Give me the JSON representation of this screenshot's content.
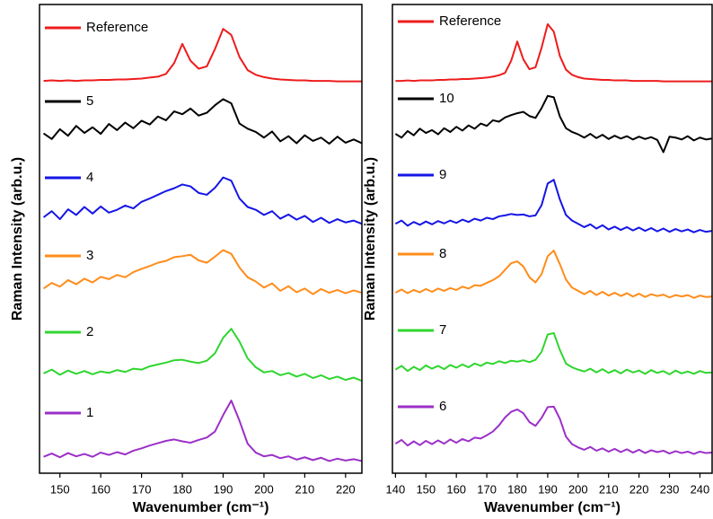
{
  "chart_data": [
    {
      "type": "line",
      "xlabel": "Wavenumber (cm⁻¹)",
      "ylabel": "Raman Intensity (arb.u.)",
      "xlim": [
        145,
        224
      ],
      "xticks": [
        150,
        160,
        170,
        180,
        190,
        200,
        210,
        220
      ],
      "ylim": [
        0,
        100
      ],
      "x": [
        146,
        148,
        150,
        152,
        154,
        156,
        158,
        160,
        162,
        164,
        166,
        168,
        170,
        172,
        174,
        176,
        178,
        180,
        182,
        184,
        186,
        188,
        190,
        192,
        194,
        196,
        198,
        200,
        202,
        204,
        206,
        208,
        210,
        212,
        214,
        216,
        218,
        220,
        222,
        224
      ],
      "series": [
        {
          "name": "Reference",
          "color": "#ee1c1c",
          "values": [
            83.7,
            83.8,
            83.7,
            83.8,
            83.7,
            83.8,
            83.8,
            83.9,
            83.9,
            84,
            84,
            84.1,
            84.2,
            84.4,
            84.6,
            85.2,
            87.5,
            91.6,
            88,
            86.3,
            86.8,
            90.5,
            94.8,
            93.5,
            88.8,
            86,
            85,
            84.5,
            84.2,
            84,
            83.9,
            83.8,
            83.8,
            83.7,
            83.7,
            83.7,
            83.6,
            83.6,
            83.6,
            83.6
          ]
        },
        {
          "name": "5",
          "color": "#000000",
          "values": [
            72.5,
            71.3,
            73.4,
            72,
            74.1,
            72.6,
            73.8,
            72.4,
            74.5,
            73.2,
            74.8,
            73.6,
            75.2,
            74.4,
            76.1,
            75.3,
            77.2,
            76.6,
            77.8,
            76.3,
            76.9,
            78.5,
            79.8,
            78.9,
            74.6,
            73.5,
            72.8,
            71.6,
            72.9,
            70.8,
            71.9,
            70.4,
            72.1,
            70.9,
            71.6,
            70.3,
            71.8,
            70.5,
            71.2,
            70.4
          ]
        },
        {
          "name": "4",
          "color": "#1515e6",
          "values": [
            54.6,
            55.9,
            54.2,
            56.3,
            55.1,
            56.8,
            55.4,
            56.9,
            55.6,
            56.2,
            57.1,
            56.5,
            57.9,
            58.6,
            59.4,
            60.2,
            60.8,
            61.6,
            61.2,
            59.8,
            59.4,
            60.9,
            63.1,
            62.4,
            58.6,
            56.8,
            56.2,
            55.1,
            55.9,
            54.3,
            55.2,
            54.1,
            54.9,
            53.6,
            54.5,
            53.4,
            54.2,
            53.5,
            53.9,
            53.2
          ]
        },
        {
          "name": "3",
          "color": "#ff8c1a",
          "values": [
            39.4,
            40.6,
            39.8,
            41.2,
            40.3,
            41.5,
            40.7,
            41.9,
            41.4,
            42.3,
            41.8,
            42.9,
            43.6,
            44.2,
            44.9,
            45.3,
            46.1,
            46.3,
            46.6,
            45.4,
            44.9,
            46.2,
            47.6,
            46.8,
            43.9,
            41.8,
            40.9,
            39.6,
            40.5,
            38.9,
            39.9,
            38.6,
            39.4,
            38.2,
            39.3,
            38.5,
            39.1,
            38.4,
            39.0,
            38.5
          ]
        },
        {
          "name": "2",
          "color": "#2fd62f",
          "values": [
            21.3,
            22.1,
            21.0,
            21.9,
            21.2,
            21.8,
            21.1,
            21.7,
            21.4,
            22.0,
            21.6,
            22.3,
            22.1,
            22.8,
            23.2,
            23.6,
            24.1,
            24.2,
            23.8,
            23.5,
            24.0,
            25.6,
            28.9,
            30.8,
            28.1,
            24.5,
            22.6,
            21.5,
            21.8,
            20.9,
            21.4,
            20.6,
            21.2,
            20.3,
            20.9,
            20.1,
            20.6,
            19.9,
            20.4,
            19.7
          ]
        },
        {
          "name": "1",
          "color": "#9b30c8",
          "values": [
            3.5,
            4.2,
            3.4,
            4.3,
            3.6,
            4.1,
            3.5,
            4.4,
            3.9,
            4.5,
            4.0,
            4.8,
            5.3,
            5.9,
            6.4,
            6.9,
            7.2,
            6.8,
            6.5,
            7.1,
            7.6,
            8.9,
            12.4,
            15.5,
            11.2,
            6.3,
            4.4,
            3.6,
            3.9,
            3.2,
            3.6,
            2.9,
            3.4,
            2.8,
            3.3,
            2.6,
            3.1,
            2.7,
            3.0,
            2.6
          ]
        }
      ]
    },
    {
      "type": "line",
      "xlabel": "Wavenumber (cm⁻¹)",
      "ylabel": "Raman Intensity (arb.u.)",
      "xlim": [
        139,
        244
      ],
      "xticks": [
        140,
        150,
        160,
        170,
        180,
        190,
        200,
        210,
        220,
        230,
        240
      ],
      "ylim": [
        0,
        100
      ],
      "x": [
        140,
        142,
        144,
        146,
        148,
        150,
        152,
        154,
        156,
        158,
        160,
        162,
        164,
        166,
        168,
        170,
        172,
        174,
        176,
        178,
        180,
        182,
        184,
        186,
        188,
        190,
        192,
        194,
        196,
        198,
        200,
        202,
        204,
        206,
        208,
        210,
        212,
        214,
        216,
        218,
        220,
        222,
        224,
        226,
        228,
        230,
        232,
        234,
        236,
        238,
        240,
        242,
        244
      ],
      "series": [
        {
          "name": "Reference",
          "color": "#ee1c1c",
          "values": [
            83.7,
            83.7,
            83.8,
            83.7,
            83.8,
            83.8,
            83.8,
            83.9,
            83.9,
            84,
            84,
            84.1,
            84.1,
            84.2,
            84.3,
            84.4,
            84.6,
            84.9,
            85.4,
            88.0,
            92.1,
            88.3,
            86.2,
            86.6,
            90.8,
            95.8,
            94.2,
            89.0,
            86.1,
            85.0,
            84.5,
            84.2,
            84.1,
            84.0,
            83.9,
            83.9,
            83.8,
            83.8,
            83.8,
            83.7,
            83.7,
            83.7,
            83.7,
            83.7,
            83.6,
            83.6,
            83.6,
            83.6,
            83.6,
            83.6,
            83.6,
            83.6,
            83.6
          ]
        },
        {
          "name": "10",
          "color": "#000000",
          "values": [
            72.4,
            71.6,
            73.0,
            72.1,
            73.5,
            72.6,
            73.2,
            72.3,
            73.6,
            72.8,
            73.9,
            73.1,
            74.2,
            73.5,
            74.6,
            74.1,
            75.3,
            75.0,
            75.9,
            76.4,
            76.8,
            77.1,
            76.2,
            75.8,
            77.9,
            80.5,
            80.2,
            76.1,
            73.6,
            72.8,
            72.3,
            71.6,
            72.4,
            71.5,
            72.2,
            71.3,
            72.0,
            71.4,
            71.9,
            71.2,
            71.8,
            71.3,
            71.7,
            71.1,
            68.5,
            71.8,
            71.6,
            71.2,
            71.9,
            71.0,
            71.6,
            71.2,
            71.4
          ]
        },
        {
          "name": "9",
          "color": "#1515e6",
          "values": [
            53.2,
            53.9,
            52.8,
            53.6,
            53.0,
            53.7,
            53.1,
            53.8,
            53.3,
            53.9,
            53.4,
            54.1,
            53.6,
            54.3,
            53.9,
            54.5,
            54.2,
            54.8,
            55.0,
            55.3,
            55.1,
            55.2,
            54.8,
            55.0,
            57.2,
            61.8,
            62.6,
            58.4,
            55.1,
            53.9,
            53.2,
            52.5,
            53.1,
            52.2,
            52.9,
            52.0,
            52.6,
            51.9,
            52.5,
            51.8,
            52.4,
            51.7,
            52.3,
            51.6,
            52.2,
            51.5,
            52.1,
            51.6,
            52.0,
            51.4,
            51.9,
            51.5,
            51.7
          ]
        },
        {
          "name": "8",
          "color": "#ff8c1a",
          "values": [
            38.5,
            39.2,
            38.4,
            39.1,
            38.6,
            39.3,
            38.7,
            39.4,
            38.9,
            39.5,
            39.1,
            39.8,
            39.4,
            40.1,
            40.0,
            40.6,
            41.2,
            42.0,
            43.4,
            44.8,
            45.2,
            44.1,
            41.8,
            40.7,
            42.5,
            46.3,
            47.5,
            44.6,
            41.3,
            39.6,
            38.9,
            38.2,
            38.9,
            38.0,
            38.7,
            37.9,
            38.5,
            37.8,
            38.4,
            37.7,
            38.3,
            37.6,
            38.2,
            37.8,
            38.1,
            37.5,
            38.0,
            37.7,
            38.0,
            37.4,
            37.9,
            37.6,
            37.7
          ]
        },
        {
          "name": "7",
          "color": "#2fd62f",
          "values": [
            22.1,
            22.9,
            21.8,
            22.7,
            22.0,
            23.0,
            22.3,
            22.9,
            22.2,
            23.1,
            22.5,
            23.2,
            22.6,
            23.4,
            22.9,
            23.6,
            23.3,
            23.9,
            23.5,
            24.0,
            23.8,
            24.1,
            23.7,
            24.2,
            25.9,
            29.6,
            29.9,
            26.3,
            23.4,
            22.6,
            22.1,
            21.7,
            22.3,
            21.5,
            22.2,
            21.4,
            22.0,
            21.3,
            22.1,
            21.5,
            21.9,
            21.2,
            22.0,
            21.4,
            21.8,
            21.1,
            21.9,
            21.3,
            21.7,
            21.2,
            21.8,
            21.4,
            21.5
          ]
        },
        {
          "name": "6",
          "color": "#9b30c8",
          "values": [
            6.3,
            7.1,
            5.9,
            6.8,
            6.0,
            6.9,
            6.2,
            7.0,
            6.3,
            7.2,
            6.5,
            7.3,
            6.8,
            7.6,
            7.4,
            8.1,
            8.9,
            10.2,
            11.9,
            13.1,
            13.6,
            12.8,
            10.9,
            10.1,
            11.8,
            14.1,
            14.2,
            11.6,
            7.8,
            6.2,
            5.5,
            5.0,
            5.6,
            4.8,
            5.3,
            4.6,
            5.2,
            4.5,
            5.1,
            4.4,
            5.0,
            4.3,
            4.9,
            4.5,
            4.8,
            4.2,
            4.7,
            4.3,
            4.6,
            4.1,
            4.6,
            4.3,
            4.4
          ]
        }
      ]
    }
  ]
}
